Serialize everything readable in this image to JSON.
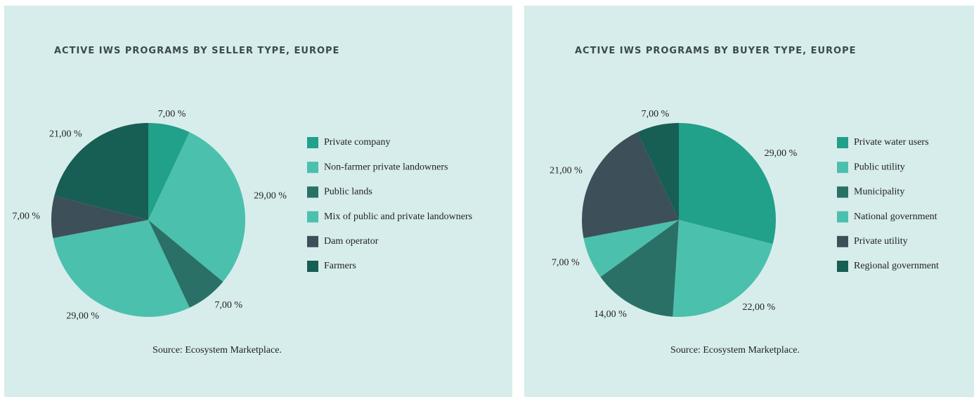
{
  "chart_data": [
    {
      "type": "pie",
      "title": "ACTIVE IWS PROGRAMS BY SELLER TYPE, EUROPE",
      "categories": [
        "Private company",
        "Non-farmer private landowners",
        "Public lands",
        "Mix of public and private landowners",
        "Dam operator",
        "Farmers"
      ],
      "values": [
        7,
        29,
        7,
        29,
        7,
        21
      ],
      "value_labels": [
        "7,00 %",
        "29,00 %",
        "7,00 %",
        "29,00 %",
        "7,00 %",
        "21,00 %"
      ],
      "colors": [
        "#21a08a",
        "#4bc0ad",
        "#2a7066",
        "#4bc0ad",
        "#3d4f58",
        "#175e54"
      ],
      "source": "Source: Ecosystem Marketplace."
    },
    {
      "type": "pie",
      "title": "ACTIVE IWS PROGRAMS BY BUYER TYPE, EUROPE",
      "categories": [
        "Private water users",
        "Public utility",
        "Municipality",
        "National government",
        "Private utility",
        "Regional government"
      ],
      "values": [
        29,
        22,
        14,
        7,
        21,
        7
      ],
      "value_labels": [
        "29,00 %",
        "22,00 %",
        "14,00 %",
        "7,00 %",
        "21,00 %",
        "7,00 %"
      ],
      "colors": [
        "#21a08a",
        "#4bc0ad",
        "#2a7066",
        "#4bc0ad",
        "#3d4f58",
        "#175e54"
      ],
      "source": "Source: Ecosystem Marketplace."
    }
  ]
}
